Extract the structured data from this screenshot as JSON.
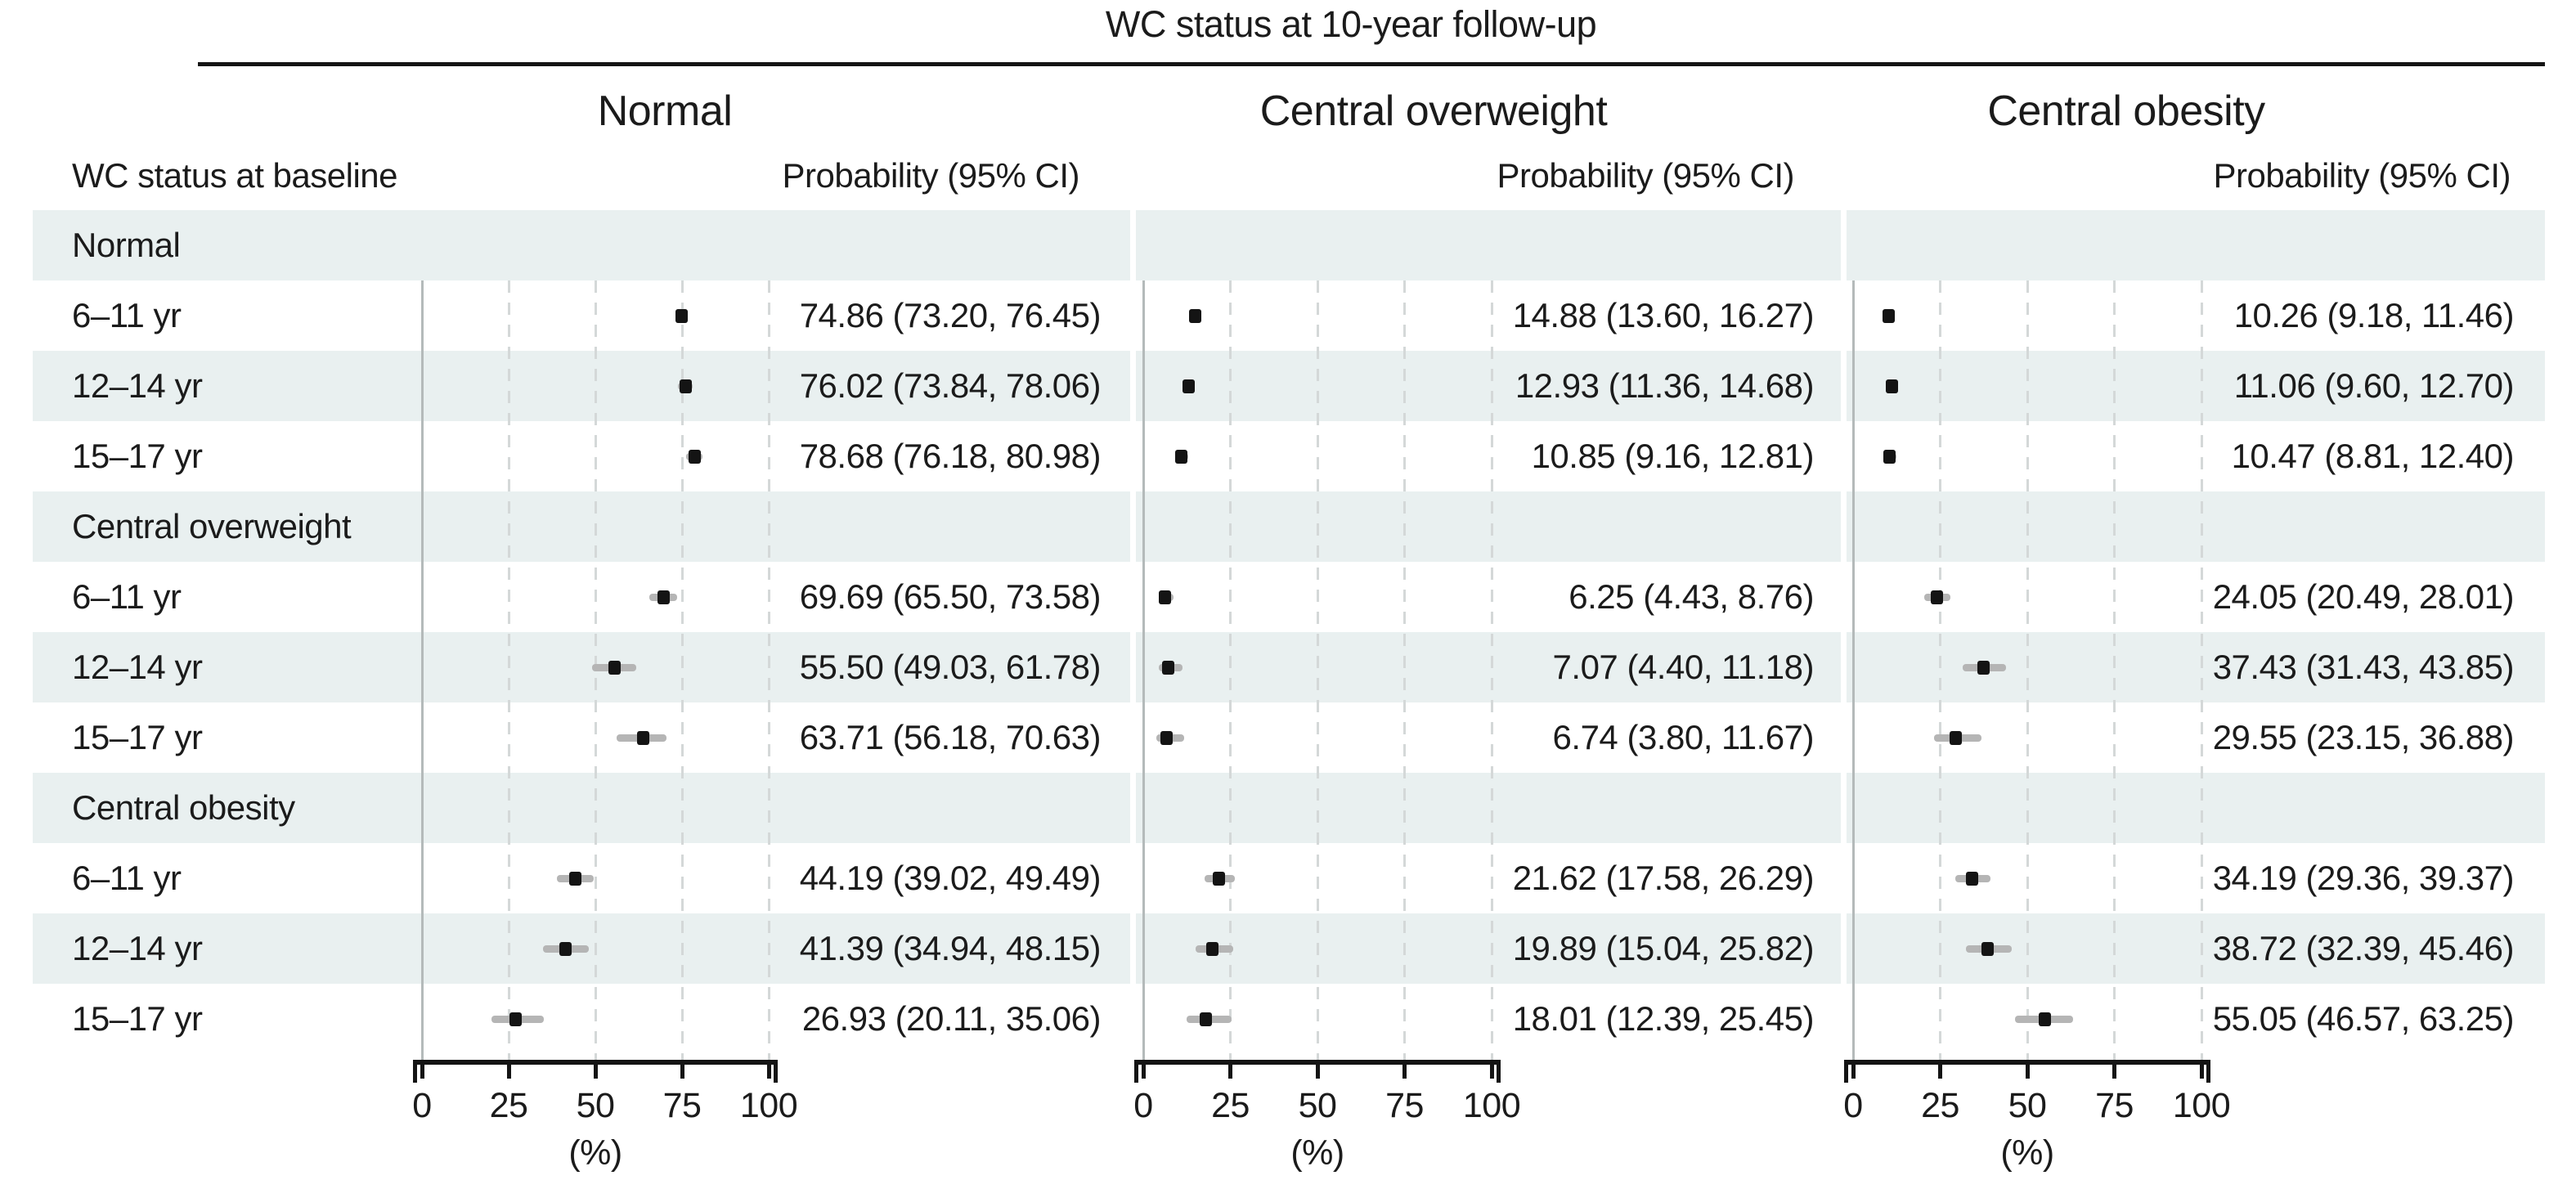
{
  "title": "WC status at 10-year follow-up",
  "chart_data": {
    "type": "forest",
    "title": "WC status at 10-year follow-up",
    "xlabel": "(%)",
    "xlim": [
      0,
      100
    ],
    "xticks": [
      0,
      25,
      50,
      75,
      100
    ],
    "grid": "solid vertical line at 0, dashed vertical gridlines at 25, 50, 75, 100",
    "legend_position": "none",
    "panels": [
      "Normal",
      "Central overweight",
      "Central obesity"
    ],
    "row_header": "WC status at baseline",
    "value_header": "Probability (95% CI)",
    "groups": [
      {
        "label": "Normal",
        "rows": [
          {
            "label": "6–11 yr",
            "cells": [
              {
                "est": 74.86,
                "lo": 73.2,
                "hi": 76.45,
                "text": "74.86 (73.20, 76.45)"
              },
              {
                "est": 14.88,
                "lo": 13.6,
                "hi": 16.27,
                "text": "14.88 (13.60, 16.27)"
              },
              {
                "est": 10.26,
                "lo": 9.18,
                "hi": 11.46,
                "text": "10.26 (9.18, 11.46)"
              }
            ]
          },
          {
            "label": "12–14 yr",
            "cells": [
              {
                "est": 76.02,
                "lo": 73.84,
                "hi": 78.06,
                "text": "76.02 (73.84, 78.06)"
              },
              {
                "est": 12.93,
                "lo": 11.36,
                "hi": 14.68,
                "text": "12.93 (11.36, 14.68)"
              },
              {
                "est": 11.06,
                "lo": 9.6,
                "hi": 12.7,
                "text": "11.06 (9.60, 12.70)"
              }
            ]
          },
          {
            "label": "15–17 yr",
            "cells": [
              {
                "est": 78.68,
                "lo": 76.18,
                "hi": 80.98,
                "text": "78.68 (76.18, 80.98)"
              },
              {
                "est": 10.85,
                "lo": 9.16,
                "hi": 12.81,
                "text": "10.85 (9.16, 12.81)"
              },
              {
                "est": 10.47,
                "lo": 8.81,
                "hi": 12.4,
                "text": "10.47 (8.81, 12.40)"
              }
            ]
          }
        ]
      },
      {
        "label": "Central overweight",
        "rows": [
          {
            "label": "6–11 yr",
            "cells": [
              {
                "est": 69.69,
                "lo": 65.5,
                "hi": 73.58,
                "text": "69.69 (65.50, 73.58)"
              },
              {
                "est": 6.25,
                "lo": 4.43,
                "hi": 8.76,
                "text": "6.25 (4.43, 8.76)"
              },
              {
                "est": 24.05,
                "lo": 20.49,
                "hi": 28.01,
                "text": "24.05 (20.49, 28.01)"
              }
            ]
          },
          {
            "label": "12–14 yr",
            "cells": [
              {
                "est": 55.5,
                "lo": 49.03,
                "hi": 61.78,
                "text": "55.50 (49.03, 61.78)"
              },
              {
                "est": 7.07,
                "lo": 4.4,
                "hi": 11.18,
                "text": "7.07 (4.40, 11.18)"
              },
              {
                "est": 37.43,
                "lo": 31.43,
                "hi": 43.85,
                "text": "37.43 (31.43, 43.85)"
              }
            ]
          },
          {
            "label": "15–17 yr",
            "cells": [
              {
                "est": 63.71,
                "lo": 56.18,
                "hi": 70.63,
                "text": "63.71 (56.18, 70.63)"
              },
              {
                "est": 6.74,
                "lo": 3.8,
                "hi": 11.67,
                "text": "6.74 (3.80, 11.67)"
              },
              {
                "est": 29.55,
                "lo": 23.15,
                "hi": 36.88,
                "text": "29.55 (23.15, 36.88)"
              }
            ]
          }
        ]
      },
      {
        "label": "Central obesity",
        "rows": [
          {
            "label": "6–11 yr",
            "cells": [
              {
                "est": 44.19,
                "lo": 39.02,
                "hi": 49.49,
                "text": "44.19 (39.02, 49.49)"
              },
              {
                "est": 21.62,
                "lo": 17.58,
                "hi": 26.29,
                "text": "21.62 (17.58, 26.29)"
              },
              {
                "est": 34.19,
                "lo": 29.36,
                "hi": 39.37,
                "text": "34.19 (29.36, 39.37)"
              }
            ]
          },
          {
            "label": "12–14 yr",
            "cells": [
              {
                "est": 41.39,
                "lo": 34.94,
                "hi": 48.15,
                "text": "41.39 (34.94, 48.15)"
              },
              {
                "est": 19.89,
                "lo": 15.04,
                "hi": 25.82,
                "text": "19.89 (15.04, 25.82)"
              },
              {
                "est": 38.72,
                "lo": 32.39,
                "hi": 45.46,
                "text": "38.72 (32.39, 45.46)"
              }
            ]
          },
          {
            "label": "15–17 yr",
            "cells": [
              {
                "est": 26.93,
                "lo": 20.11,
                "hi": 35.06,
                "text": "26.93 (20.11, 35.06)"
              },
              {
                "est": 18.01,
                "lo": 12.39,
                "hi": 25.45,
                "text": "18.01 (12.39, 25.45)"
              },
              {
                "est": 55.05,
                "lo": 46.57,
                "hi": 63.25,
                "text": "55.05 (46.57, 63.25)"
              }
            ]
          }
        ]
      }
    ]
  },
  "colors": {
    "background": "#ffffff",
    "band": "#e9f0f0",
    "text": "#1b1b1b",
    "axis": "#141414",
    "marker": "#141414",
    "ci_line": "#b5b5b5",
    "grid_solid": "#b4baba",
    "grid_dashed": "#d4d8d8"
  }
}
